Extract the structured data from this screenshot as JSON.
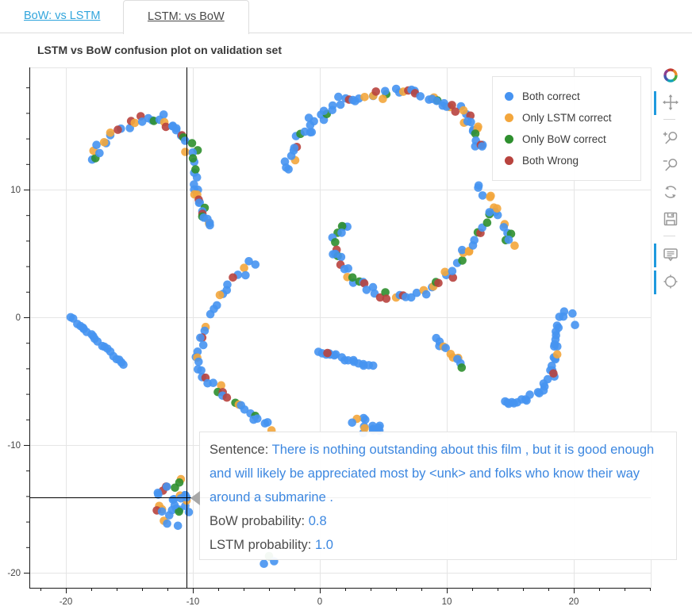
{
  "tabs": [
    {
      "label": "BoW: vs LSTM",
      "active": false
    },
    {
      "label": "LSTM: vs BoW",
      "active": true
    }
  ],
  "title": "LSTM vs BoW confusion plot on validation set",
  "legend": {
    "items": [
      {
        "label": "Both correct",
        "color": "#4693f1"
      },
      {
        "label": "Only LSTM correct",
        "color": "#f3a63c"
      },
      {
        "label": "Only BoW correct",
        "color": "#2e8f2e"
      },
      {
        "label": "Both Wrong",
        "color": "#b8433e"
      }
    ]
  },
  "toolbar": {
    "tools": [
      "bokeh-logo",
      "pan",
      "zoom-in",
      "zoom-out",
      "reset",
      "save",
      "hover",
      "tap"
    ],
    "active_tools": [
      "pan",
      "hover",
      "tap"
    ]
  },
  "tooltip": {
    "sentence_label": "Sentence:",
    "sentence_value": "There is nothing outstanding about this film , but it is good enough and will likely be appreciated most by <unk> and folks who know their way around a submarine .",
    "bow_label": "BoW probability:",
    "bow_value": "0.8",
    "lstm_label": "LSTM probability:",
    "lstm_value": "1.0"
  },
  "colors": {
    "tab_link": "#31a5dc",
    "tooltip_value_blue": "#3c87e0",
    "active_tool_accent": "#1f9ade",
    "crosshair": "#000000",
    "grid": "#e5e5e5",
    "axis": "#1a1a1a",
    "tick_label": "#444444"
  },
  "chart_data": {
    "type": "scatter",
    "title": "LSTM vs BoW confusion plot on validation set",
    "xlabel": "",
    "ylabel": "",
    "x_range": [
      -22.9,
      26.1
    ],
    "y_range": [
      -21.2,
      19.6
    ],
    "x_major_ticks": [
      -20,
      -10,
      0,
      10,
      20
    ],
    "y_major_ticks": [
      -20,
      -10,
      0,
      10
    ],
    "minor_tick_step": 2,
    "grid": true,
    "legend_position": "top_right",
    "series": [
      {
        "name": "Both correct",
        "color": "#4693f1"
      },
      {
        "name": "Only LSTM correct",
        "color": "#f3a63c"
      },
      {
        "name": "Only BoW correct",
        "color": "#2e8f2e"
      },
      {
        "name": "Both Wrong",
        "color": "#b8433e"
      }
    ],
    "crosshair": {
      "x": -10.5,
      "y": -14.1
    },
    "hovered_point": {
      "x": -10.5,
      "y": -14.1,
      "series": "Both correct",
      "bow_probability": 0.8,
      "lstm_probability": 1.0
    },
    "clusters": [
      {
        "name": "arc-top-left",
        "kind": "path",
        "count": 42,
        "jitter": 0.5,
        "mix": [
          0.6,
          0.16,
          0.13,
          0.11
        ],
        "path": [
          [
            -18.1,
            12.4
          ],
          [
            -16.5,
            14.1
          ],
          [
            -14.3,
            15.4
          ],
          [
            -12.2,
            15.5
          ],
          [
            -10.8,
            14.4
          ],
          [
            -9.9,
            12.6
          ],
          [
            -9.7,
            10.2
          ]
        ]
      },
      {
        "name": "tail-top-left",
        "kind": "path",
        "count": 15,
        "jitter": 0.35,
        "mix": [
          0.62,
          0.2,
          0.06,
          0.12
        ],
        "path": [
          [
            -9.9,
            9.9
          ],
          [
            -9.4,
            8.9
          ],
          [
            -9.3,
            7.8
          ],
          [
            -8.5,
            7.0
          ]
        ]
      },
      {
        "name": "s-curve-left",
        "kind": "path",
        "count": 44,
        "jitter": 0.38,
        "mix": [
          0.7,
          0.16,
          0.05,
          0.09
        ],
        "path": [
          [
            -5.2,
            4.3
          ],
          [
            -6.4,
            3.3
          ],
          [
            -7.6,
            2.0
          ],
          [
            -8.6,
            0.3
          ],
          [
            -9.4,
            -1.6
          ],
          [
            -9.7,
            -3.1
          ],
          [
            -9.3,
            -4.5
          ],
          [
            -8.4,
            -5.4
          ],
          [
            -7.4,
            -6.2
          ],
          [
            -6.1,
            -7.1
          ],
          [
            -4.9,
            -8.0
          ],
          [
            -3.8,
            -8.6
          ]
        ]
      },
      {
        "name": "line-far-left",
        "kind": "path",
        "count": 20,
        "jitter": 0.12,
        "mix": [
          1,
          0,
          0,
          0
        ],
        "path": [
          [
            -19.7,
            0.0
          ],
          [
            -18.6,
            -0.9
          ],
          [
            -17.5,
            -1.8
          ],
          [
            -16.4,
            -2.9
          ],
          [
            -15.4,
            -3.8
          ]
        ]
      },
      {
        "name": "arch-top-middle",
        "kind": "path",
        "count": 72,
        "jitter": 0.5,
        "mix": [
          0.66,
          0.14,
          0.09,
          0.11
        ],
        "path": [
          [
            -2.7,
            11.6
          ],
          [
            -1.6,
            13.8
          ],
          [
            -0.2,
            15.6
          ],
          [
            1.8,
            16.9
          ],
          [
            4.4,
            17.5
          ],
          [
            7.0,
            17.6
          ],
          [
            9.3,
            17.0
          ],
          [
            11.0,
            16.1
          ],
          [
            12.2,
            14.7
          ],
          [
            12.8,
            13.3
          ]
        ]
      },
      {
        "name": "strand-below-legend",
        "kind": "path",
        "count": 15,
        "jitter": 0.4,
        "mix": [
          0.42,
          0.25,
          0.15,
          0.18
        ],
        "path": [
          [
            12.3,
            10.5
          ],
          [
            13.3,
            9.3
          ],
          [
            14.2,
            7.9
          ],
          [
            14.8,
            6.3
          ],
          [
            15.0,
            5.7
          ]
        ]
      },
      {
        "name": "swirl-center",
        "kind": "path",
        "count": 58,
        "jitter": 0.42,
        "mix": [
          0.44,
          0.23,
          0.2,
          0.13
        ],
        "path": [
          [
            2.2,
            7.4
          ],
          [
            1.3,
            6.2
          ],
          [
            1.4,
            4.6
          ],
          [
            2.3,
            3.2
          ],
          [
            3.7,
            2.3
          ],
          [
            5.4,
            1.7
          ],
          [
            7.3,
            1.8
          ],
          [
            9.1,
            2.5
          ],
          [
            10.4,
            3.6
          ],
          [
            11.6,
            5.1
          ],
          [
            12.6,
            6.7
          ],
          [
            13.8,
            8.5
          ]
        ]
      },
      {
        "name": "strand-mid-right",
        "kind": "path",
        "count": 11,
        "jitter": 0.3,
        "mix": [
          0.4,
          0.25,
          0.2,
          0.15
        ],
        "path": [
          [
            9.1,
            -1.7
          ],
          [
            9.9,
            -2.4
          ],
          [
            10.7,
            -3.2
          ],
          [
            11.1,
            -3.8
          ]
        ]
      },
      {
        "name": "line-center",
        "kind": "path",
        "count": 17,
        "jitter": 0.13,
        "mix": [
          1,
          0,
          0,
          0
        ],
        "path": [
          [
            -0.1,
            -2.7
          ],
          [
            1.2,
            -3.0
          ],
          [
            2.7,
            -3.5
          ],
          [
            4.2,
            -3.9
          ]
        ]
      },
      {
        "name": "j-hook-right",
        "kind": "path",
        "count": 34,
        "jitter": 0.32,
        "mix": [
          1,
          0,
          0,
          0
        ],
        "path": [
          [
            19.3,
            0.4
          ],
          [
            18.6,
            -0.7
          ],
          [
            18.4,
            -2.0
          ],
          [
            18.6,
            -3.2
          ],
          [
            18.3,
            -4.4
          ],
          [
            17.6,
            -5.5
          ],
          [
            16.5,
            -6.3
          ],
          [
            15.3,
            -6.7
          ],
          [
            14.5,
            -6.7
          ]
        ]
      },
      {
        "name": "blob-bottom-left",
        "kind": "blob",
        "count": 30,
        "center": [
          -11.6,
          -14.2
        ],
        "rx": 1.7,
        "ry": 2.4,
        "mix": [
          0.83,
          0.06,
          0.05,
          0.06
        ]
      },
      {
        "name": "blob-above-tooltip",
        "kind": "blob",
        "count": 13,
        "center": [
          3.5,
          -8.4
        ],
        "rx": 2.0,
        "ry": 0.8,
        "mix": [
          0.92,
          0.08,
          0,
          0
        ]
      }
    ],
    "extra_points": [
      {
        "x": 0.6,
        "y": -2.8,
        "series": 3
      },
      {
        "x": 18.7,
        "y": -2.9,
        "series": 1
      },
      {
        "x": 18.4,
        "y": -4.4,
        "series": 3
      },
      {
        "x": 19.9,
        "y": 0.3,
        "series": 0
      },
      {
        "x": 20.1,
        "y": -0.6,
        "series": 0
      },
      {
        "x": -4.0,
        "y": -18.7,
        "series": 2
      },
      {
        "x": -3.6,
        "y": -19.1,
        "series": 0
      },
      {
        "x": -4.4,
        "y": -19.3,
        "series": 0
      }
    ]
  }
}
